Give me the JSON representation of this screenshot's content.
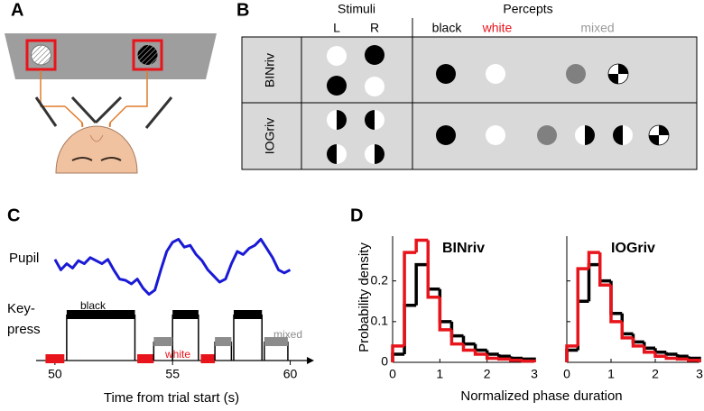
{
  "panel_letters": [
    "A",
    "B",
    "C",
    "D"
  ],
  "stimuli_table": {
    "stimuli_header": "Stimuli",
    "percepts_header": "Percepts",
    "eye_labels": [
      "L",
      "R"
    ],
    "percept_labels": [
      {
        "text": "black",
        "color": "#000000"
      },
      {
        "text": "white",
        "color": "#e8141b"
      },
      {
        "text": "mixed",
        "color": "#9a9a9a"
      }
    ],
    "rows": [
      "BINriv",
      "IOGriv"
    ]
  },
  "chart_data": [
    {
      "type": "timeline",
      "xlabel": "Time from trial start  (s)",
      "xlim": [
        49.2,
        60.9
      ],
      "xticks": [
        50,
        55,
        60
      ],
      "pupil": {
        "label": "Pupil",
        "color": "#1a1ad6",
        "ylim": [
          0,
          1
        ],
        "x": [
          50,
          50.25,
          50.5,
          50.75,
          51,
          51.25,
          51.5,
          51.75,
          52,
          52.25,
          52.5,
          52.75,
          53,
          53.25,
          53.5,
          53.75,
          54,
          54.25,
          54.5,
          54.75,
          55,
          55.25,
          55.5,
          55.75,
          56,
          56.25,
          56.5,
          56.75,
          57,
          57.25,
          57.5,
          57.75,
          58,
          58.25,
          58.5,
          58.75,
          59,
          59.25,
          59.5,
          59.75,
          60
        ],
        "values": [
          0.62,
          0.45,
          0.55,
          0.48,
          0.6,
          0.55,
          0.65,
          0.6,
          0.55,
          0.62,
          0.45,
          0.3,
          0.28,
          0.22,
          0.3,
          0.15,
          0.05,
          0.12,
          0.45,
          0.75,
          0.9,
          0.95,
          0.82,
          0.85,
          0.7,
          0.6,
          0.45,
          0.35,
          0.25,
          0.3,
          0.55,
          0.75,
          0.7,
          0.8,
          0.85,
          0.95,
          0.8,
          0.65,
          0.45,
          0.4,
          0.45
        ]
      },
      "keypress": {
        "label": [
          "Key-",
          "press"
        ],
        "series": [
          {
            "name": "black",
            "color": "#000000",
            "intervals": [
              [
                50.5,
                53.4
              ],
              [
                55.0,
                56.1
              ],
              [
                57.6,
                58.8
              ]
            ]
          },
          {
            "name": "white",
            "color": "#e8141b",
            "intervals": [
              [
                49.6,
                50.4
              ],
              [
                53.5,
                54.2
              ],
              [
                56.2,
                56.8
              ]
            ]
          },
          {
            "name": "mixed",
            "color": "#8c8c8c",
            "intervals": [
              [
                54.2,
                55.0
              ],
              [
                56.8,
                57.5
              ],
              [
                58.9,
                59.9
              ]
            ]
          }
        ]
      }
    },
    {
      "type": "histogram",
      "title": "BINriv",
      "ylabel": "Probability density",
      "bins": [
        0,
        0.25,
        0.5,
        0.75,
        1,
        1.25,
        1.5,
        1.75,
        2,
        2.25,
        2.5,
        2.75,
        3
      ],
      "xlim": [
        0,
        3
      ],
      "xticks": [
        0,
        1,
        2,
        3
      ],
      "ylim": [
        0,
        0.31
      ],
      "yticks": [
        0,
        0.1,
        0.2
      ],
      "series": [
        {
          "color": "#000000",
          "values": [
            0.02,
            0.14,
            0.24,
            0.18,
            0.1,
            0.065,
            0.045,
            0.03,
            0.02,
            0.015,
            0.01,
            0.008
          ]
        },
        {
          "color": "#e8141b",
          "values": [
            0.04,
            0.27,
            0.3,
            0.16,
            0.08,
            0.045,
            0.03,
            0.02,
            0.01,
            0.008,
            0.005,
            0.003
          ]
        }
      ]
    },
    {
      "type": "histogram",
      "title": "IOGriv",
      "bins": [
        0,
        0.25,
        0.5,
        0.75,
        1,
        1.25,
        1.5,
        1.75,
        2,
        2.25,
        2.5,
        2.75,
        3
      ],
      "xlim": [
        0,
        3
      ],
      "xticks": [
        0,
        1,
        2,
        3
      ],
      "ylim": [
        0,
        0.31
      ],
      "yticks": [
        0,
        0.1,
        0.2
      ],
      "series": [
        {
          "color": "#000000",
          "values": [
            0.03,
            0.15,
            0.24,
            0.2,
            0.12,
            0.07,
            0.05,
            0.035,
            0.025,
            0.02,
            0.015,
            0.01
          ]
        },
        {
          "color": "#e8141b",
          "values": [
            0.04,
            0.23,
            0.27,
            0.19,
            0.1,
            0.06,
            0.04,
            0.025,
            0.015,
            0.01,
            0.008,
            0.005
          ]
        }
      ]
    }
  ],
  "shared_xlabel": "Normalized phase duration"
}
